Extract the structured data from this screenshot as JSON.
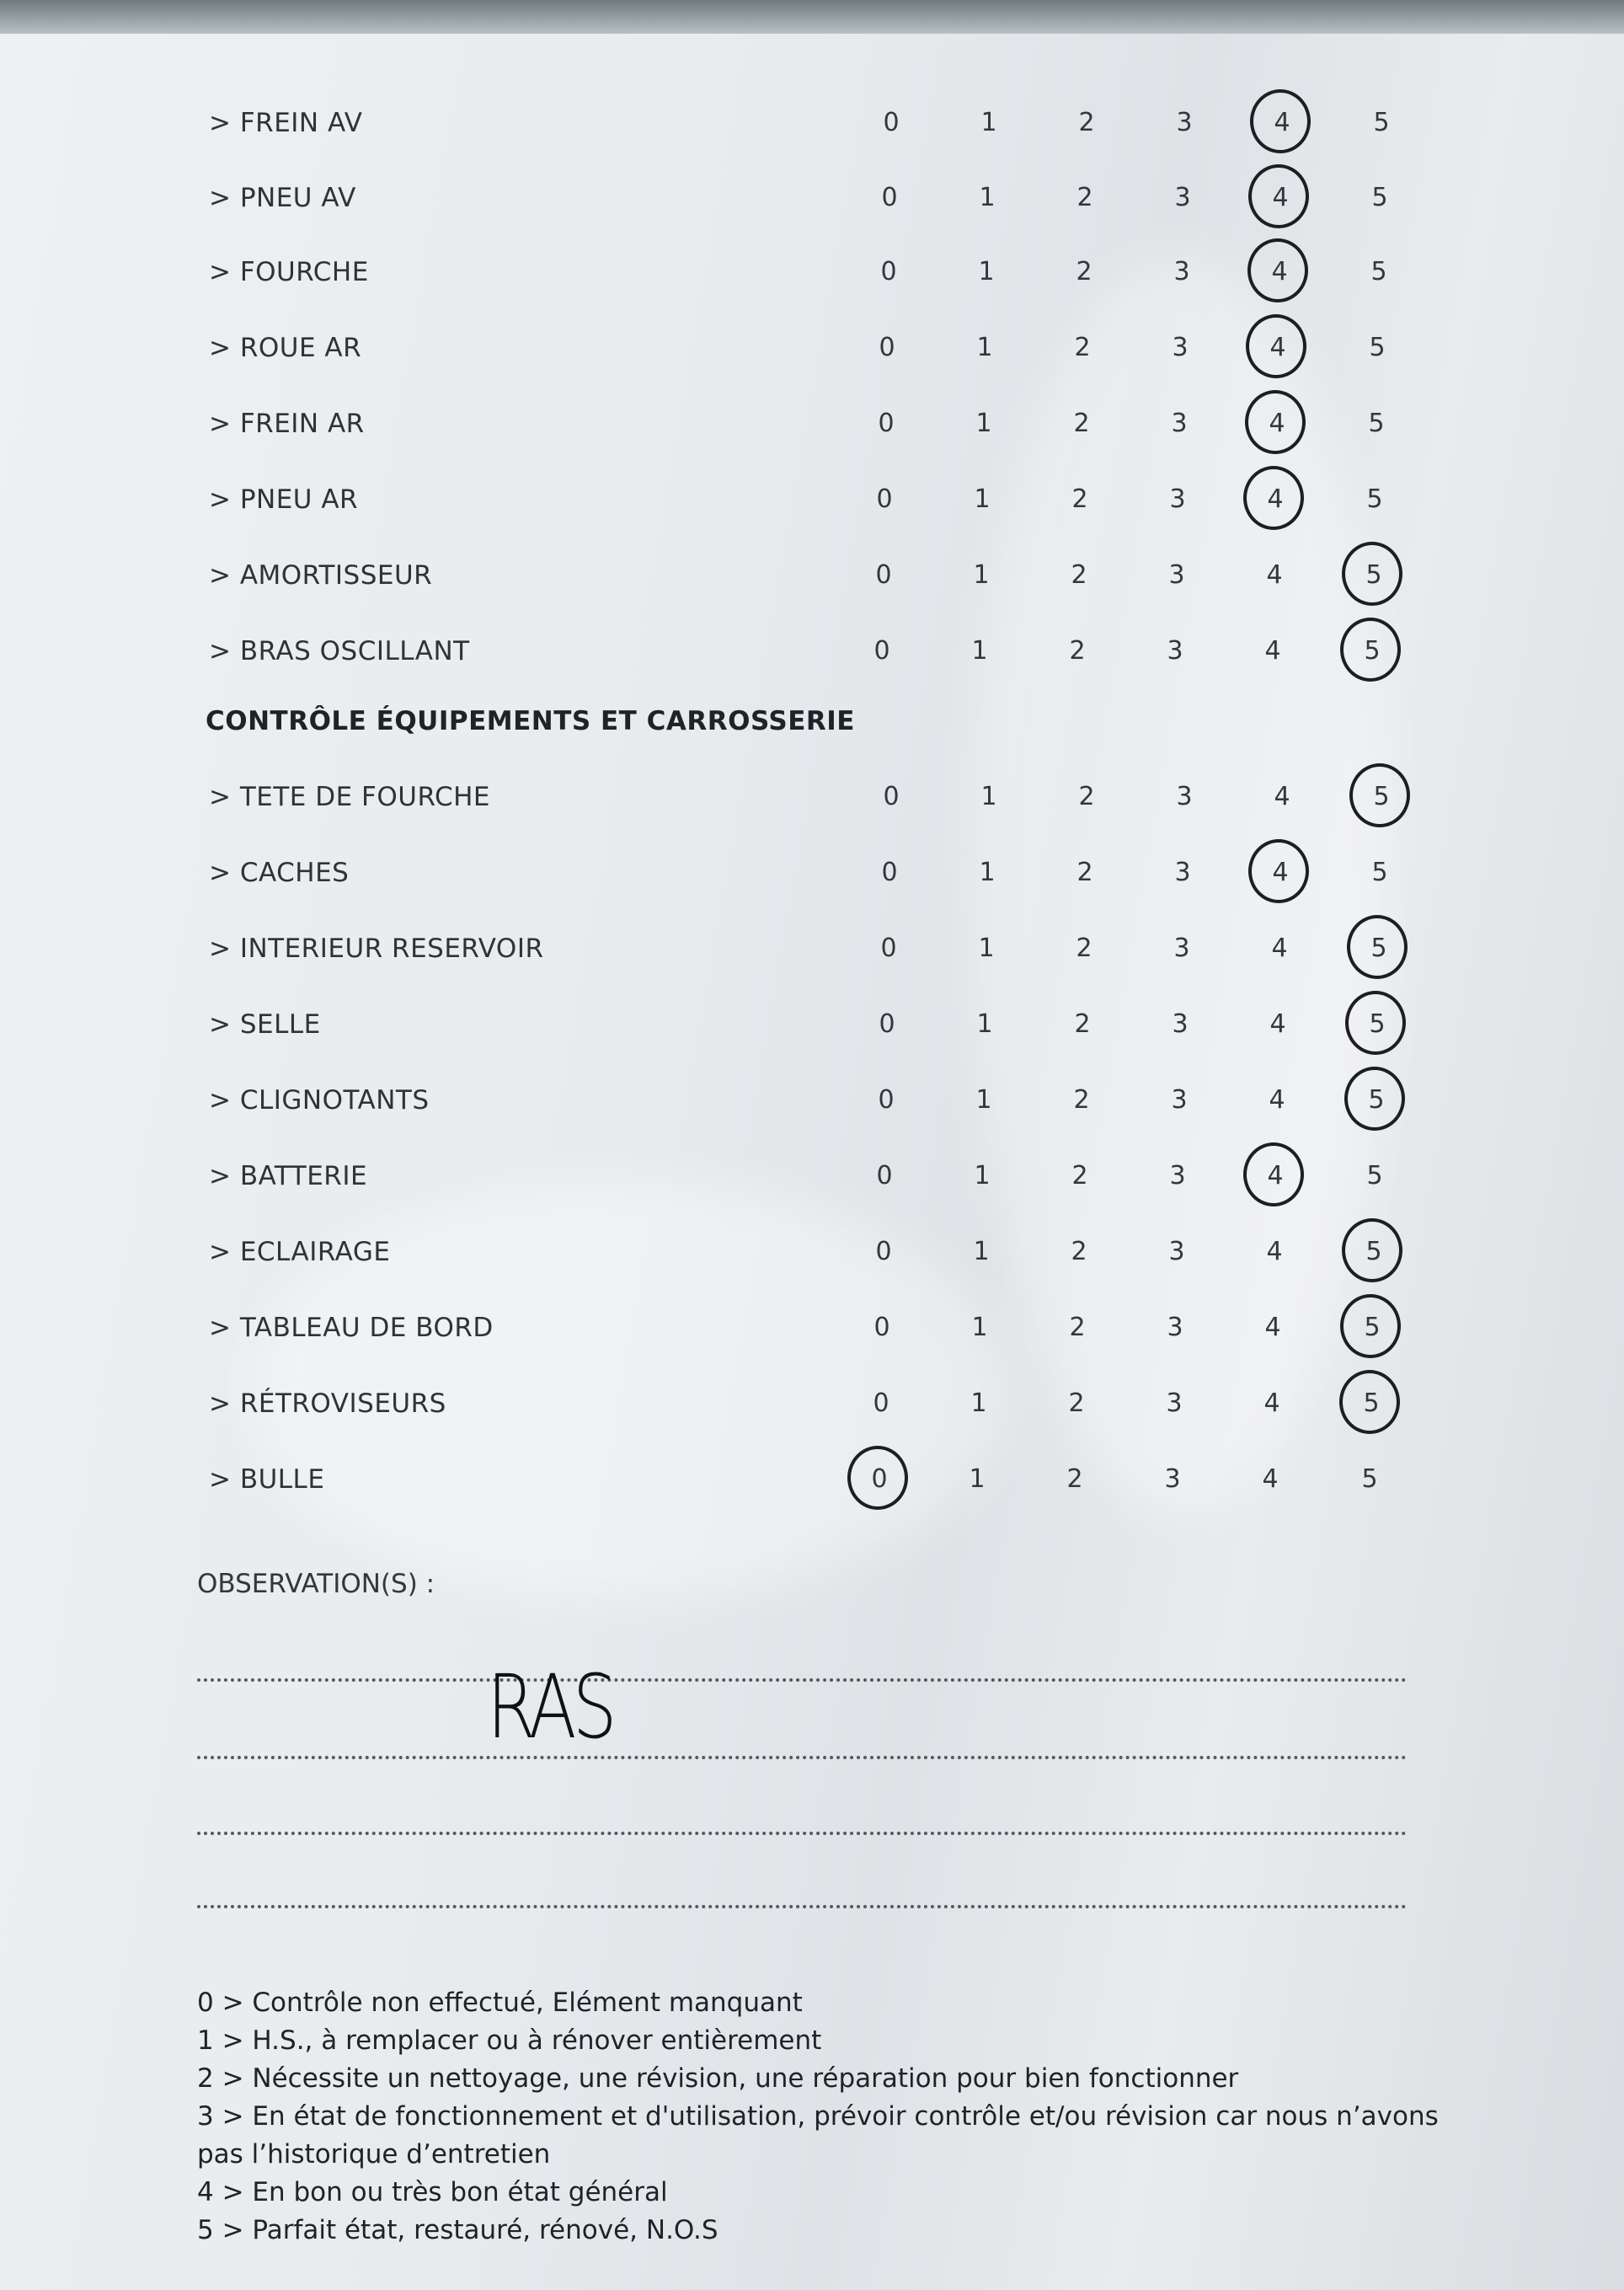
{
  "scale": [
    "0",
    "1",
    "2",
    "3",
    "4",
    "5"
  ],
  "section1_items": [
    {
      "label": "> FREIN AV",
      "rating": 4
    },
    {
      "label": "> PNEU AV",
      "rating": 4
    },
    {
      "label": "> FOURCHE",
      "rating": 4
    },
    {
      "label": "> ROUE AR",
      "rating": 4
    },
    {
      "label": "> FREIN AR",
      "rating": 4
    },
    {
      "label": "> PNEU AR",
      "rating": 4
    },
    {
      "label": "> AMORTISSEUR",
      "rating": 5
    },
    {
      "label": "> BRAS OSCILLANT",
      "rating": 5
    }
  ],
  "section2_heading": "CONTRÔLE ÉQUIPEMENTS ET CARROSSERIE",
  "section2_items": [
    {
      "label": "> TETE DE FOURCHE",
      "rating": 5
    },
    {
      "label": "> CACHES",
      "rating": 4
    },
    {
      "label": "> INTERIEUR RESERVOIR",
      "rating": 5
    },
    {
      "label": "> SELLE",
      "rating": 5
    },
    {
      "label": "> CLIGNOTANTS",
      "rating": 5
    },
    {
      "label": "> BATTERIE",
      "rating": 4
    },
    {
      "label": "> ECLAIRAGE",
      "rating": 5
    },
    {
      "label": "> TABLEAU DE BORD",
      "rating": 5
    },
    {
      "label": "> RÉTROVISEURS",
      "rating": 5
    },
    {
      "label": "> BULLE",
      "rating": 0
    }
  ],
  "observations": {
    "label": "OBSERVATION(S) :",
    "handwritten": "RAS"
  },
  "legend": [
    "0 > Contrôle non effectué, Elément manquant",
    "1 > H.S., à remplacer ou à rénover entièrement",
    "2 > Nécessite un nettoyage, une révision, une réparation pour bien fonctionner",
    "3 > En état de fonctionnement et d'utilisation, prévoir contrôle et/ou révision car nous n’avons pas l’historique d’entretien",
    "4 > En bon ou très bon état général",
    "5 > Parfait état, restauré, rénové, N.O.S"
  ]
}
